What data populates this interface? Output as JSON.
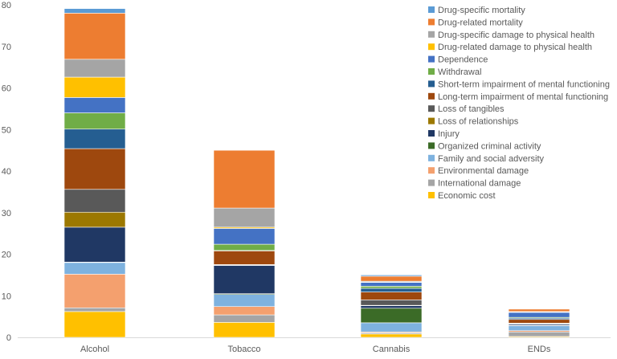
{
  "chart_data": {
    "type": "bar",
    "stacked": true,
    "categories": [
      "Alcohol",
      "Tobacco",
      "Cannabis",
      "ENDs"
    ],
    "ylim": [
      0,
      80
    ],
    "yticks": [
      0,
      10,
      20,
      30,
      40,
      50,
      60,
      70,
      80
    ],
    "grid": false,
    "legend_position": "right",
    "series": [
      {
        "name": "Economic cost",
        "color": "#FFC000",
        "values": [
          6.2,
          3.6,
          0.8,
          0.2
        ]
      },
      {
        "name": "International damage",
        "color": "#A5A5A5",
        "values": [
          0.9,
          1.8,
          0.3,
          1.1
        ]
      },
      {
        "name": "Environmental damage",
        "color": "#F4A06E",
        "values": [
          8.1,
          2.0,
          0.2,
          0.3
        ]
      },
      {
        "name": "Family and social adversity",
        "color": "#7EB2DF",
        "values": [
          2.8,
          2.9,
          2.2,
          1.2
        ]
      },
      {
        "name": "Organized criminal activity",
        "color": "#3B6B27",
        "values": [
          0.1,
          0.2,
          3.5,
          0.1
        ]
      },
      {
        "name": "Injury",
        "color": "#203864",
        "values": [
          8.4,
          6.8,
          0.6,
          0.3
        ]
      },
      {
        "name": "Loss of relationships",
        "color": "#9C7800",
        "values": [
          3.6,
          0.1,
          0.1,
          0.1
        ]
      },
      {
        "name": "Loss of tangibles",
        "color": "#595959",
        "values": [
          5.5,
          0.1,
          1.3,
          0.1
        ]
      },
      {
        "name": "Long-term impairment of mental functioning",
        "color": "#9E480E",
        "values": [
          9.8,
          3.3,
          1.9,
          0.9
        ]
      },
      {
        "name": "Short-term impairment of mental functioning",
        "color": "#255E91",
        "values": [
          4.7,
          0.1,
          0.9,
          0.3
        ]
      },
      {
        "name": "Withdrawal",
        "color": "#70AD47",
        "values": [
          3.9,
          1.5,
          0.5,
          0.2
        ]
      },
      {
        "name": "Dependence",
        "color": "#4472C4",
        "values": [
          3.7,
          3.8,
          0.9,
          1.2
        ]
      },
      {
        "name": "Drug-related damage to physical health",
        "color": "#FFC000",
        "values": [
          4.9,
          0.3,
          0.1,
          0.1
        ]
      },
      {
        "name": "Drug-specific damage to physical health",
        "color": "#A5A5A5",
        "values": [
          4.3,
          4.6,
          0.2,
          0.1
        ]
      },
      {
        "name": "Drug-related mortality",
        "color": "#ED7D31",
        "values": [
          11.1,
          13.9,
          1.2,
          0.6
        ]
      },
      {
        "name": "Drug-specific mortality",
        "color": "#5B9BD5",
        "values": [
          1.1,
          0.0,
          0.3,
          0.1
        ]
      }
    ]
  }
}
